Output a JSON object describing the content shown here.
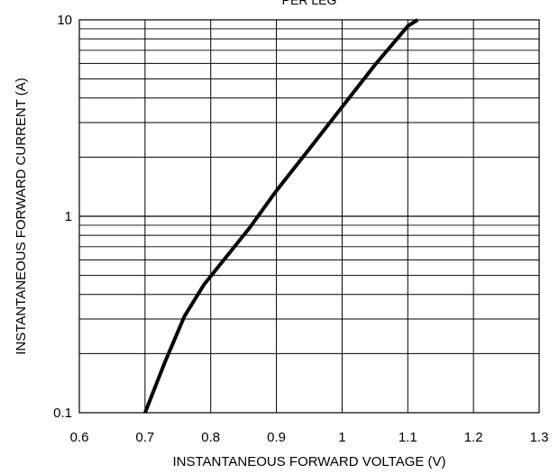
{
  "chart_data": {
    "type": "line",
    "title": "PER LEG",
    "xlabel": "INSTANTANEOUS FORWARD VOLTAGE (V)",
    "ylabel": "INSTANTANEOUS FORWARD CURRENT (A)",
    "xlim": [
      0.6,
      1.3
    ],
    "ylim": [
      0.1,
      10
    ],
    "yscale": "log",
    "grid": true,
    "x_ticks": [
      "0.6",
      "0.7",
      "0.8",
      "0.9",
      "1",
      "1.1",
      "1.2",
      "1.3"
    ],
    "y_ticks": [
      "0.1",
      "1",
      "10"
    ],
    "series": [
      {
        "color": "#000000",
        "x": [
          0.7,
          0.73,
          0.76,
          0.79,
          0.82,
          0.86,
          0.9,
          0.95,
          1.0,
          1.05,
          1.1,
          1.115
        ],
        "y": [
          0.1,
          0.18,
          0.31,
          0.45,
          0.6,
          0.88,
          1.35,
          2.2,
          3.6,
          5.9,
          9.3,
          10.0
        ]
      }
    ]
  }
}
